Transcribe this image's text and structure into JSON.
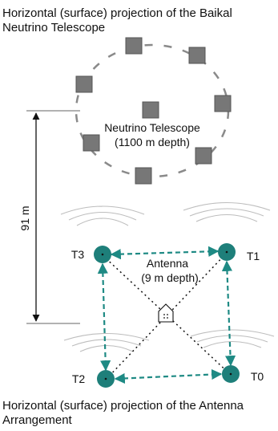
{
  "titles": {
    "top": "Horizontal (surface) projection of the Baikal Neutrino Telescope",
    "bottom": "Horizontal (surface) projection of the Antenna Arrangement"
  },
  "telescope": {
    "label_line1": "Neutrino Telescope",
    "label_line2": "(1100 m depth)"
  },
  "distance_label": "91 m",
  "antenna": {
    "label_line1": "Antenna",
    "label_line2": "(9 m depth)"
  },
  "hydrophones": [
    {
      "id": "T3",
      "label": "T3"
    },
    {
      "id": "T1",
      "label": "T1"
    },
    {
      "id": "T2",
      "label": "T2"
    },
    {
      "id": "T0",
      "label": "T0"
    }
  ],
  "colors": {
    "module_gray": "#777777",
    "circle_dash": "#8a8a8a",
    "hydrophone_teal": "#1e7f7a",
    "link_teal": "#1e8a84",
    "wave_gray": "#bdbdbd",
    "black": "#111111"
  }
}
